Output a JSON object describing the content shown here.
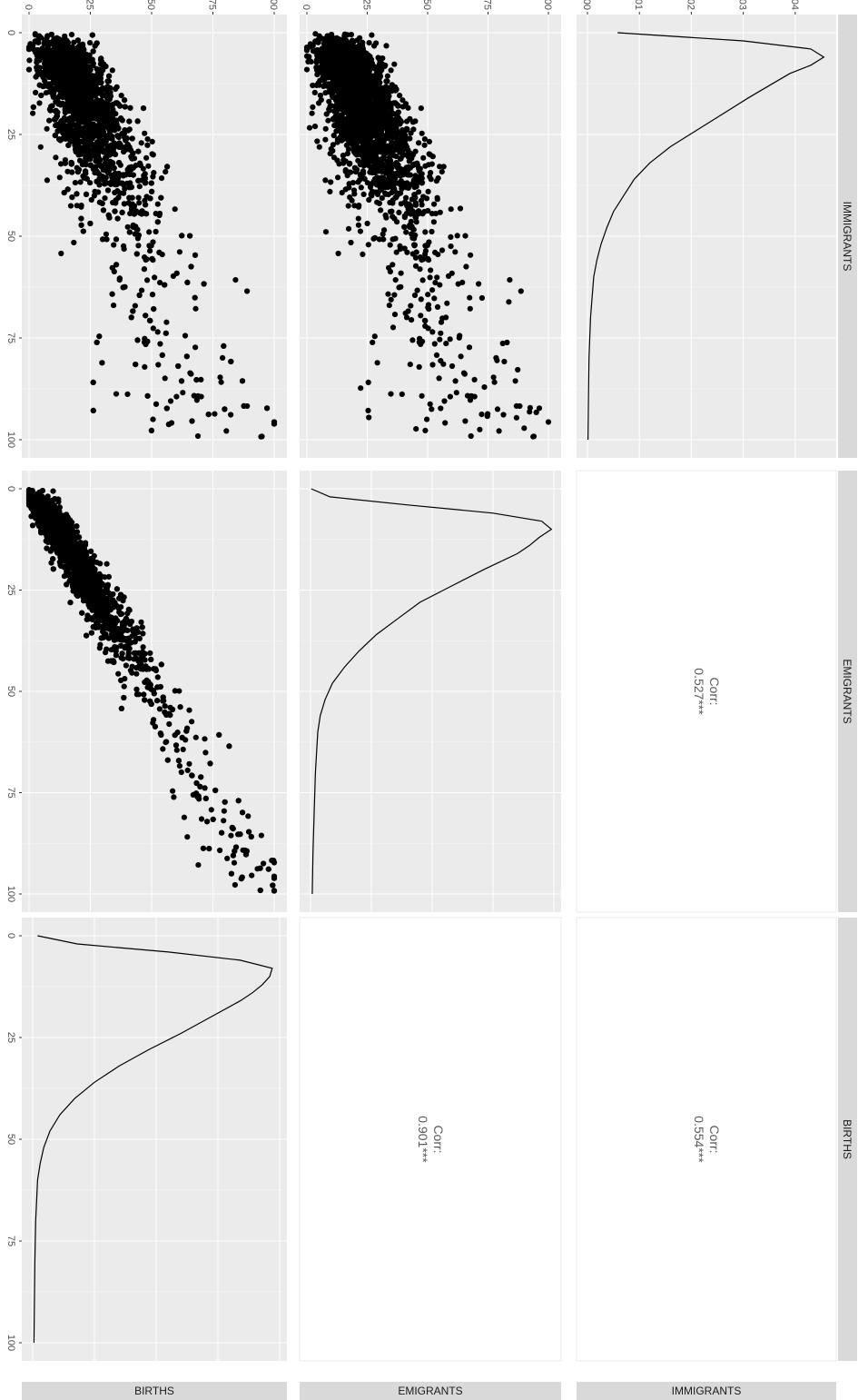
{
  "chart_data": {
    "type": "pairs-matrix",
    "variables": [
      "IMMIGRANTS",
      "EMIGRANTS",
      "BIRTHS"
    ],
    "x_ticks": [
      0,
      25,
      50,
      75,
      100
    ],
    "density_y_ticks": [
      "0.00",
      "0.01",
      "0.02",
      "0.03",
      "0.04"
    ],
    "scatter_y_ticks": [
      0,
      25,
      50,
      75,
      100
    ],
    "correlations": [
      {
        "pair": [
          "IMMIGRANTS",
          "EMIGRANTS"
        ],
        "label": "Corr:",
        "value": "0.527***"
      },
      {
        "pair": [
          "IMMIGRANTS",
          "BIRTHS"
        ],
        "label": "Corr:",
        "value": "0.554***"
      },
      {
        "pair": [
          "EMIGRANTS",
          "BIRTHS"
        ],
        "label": "Corr:",
        "value": "0.901***"
      }
    ],
    "densities": [
      {
        "variable": "IMMIGRANTS",
        "x": [
          0,
          2,
          4,
          6,
          8,
          10,
          13,
          16,
          20,
          24,
          28,
          32,
          36,
          40,
          44,
          48,
          52,
          56,
          60,
          70,
          80,
          90,
          100
        ],
        "y": [
          0.0058,
          0.03,
          0.043,
          0.0455,
          0.043,
          0.039,
          0.035,
          0.031,
          0.026,
          0.021,
          0.016,
          0.012,
          0.009,
          0.007,
          0.005,
          0.0037,
          0.0026,
          0.0018,
          0.0012,
          0.0006,
          0.0003,
          0.0002,
          0.0001
        ]
      },
      {
        "variable": "EMIGRANTS",
        "x": [
          0,
          2,
          4,
          6,
          8,
          10,
          12,
          14,
          16,
          20,
          24,
          28,
          32,
          36,
          40,
          44,
          48,
          52,
          56,
          60,
          70,
          80,
          90,
          100
        ],
        "y": [
          0.3,
          8,
          40,
          75,
          95,
          99,
          94,
          90,
          85,
          71,
          58,
          45,
          36,
          27,
          20,
          14,
          9,
          6,
          4,
          3,
          2,
          1.5,
          1,
          0.7
        ]
      },
      {
        "variable": "BIRTHS",
        "x": [
          0,
          2,
          4,
          6,
          8,
          10,
          12,
          14,
          16,
          20,
          24,
          28,
          32,
          36,
          40,
          44,
          48,
          52,
          56,
          60,
          70,
          80,
          90,
          100
        ],
        "y": [
          2,
          18,
          55,
          84,
          97,
          96,
          93,
          89,
          84,
          72,
          60,
          47,
          35,
          25,
          17,
          11,
          7,
          4.5,
          3,
          2,
          1.2,
          0.9,
          0.7,
          0.5
        ]
      }
    ],
    "scatters": [
      {
        "x_variable": "IMMIGRANTS",
        "y_variable": "EMIGRANTS",
        "slope": 0.6,
        "intercept": 12,
        "spread": 10
      },
      {
        "x_variable": "IMMIGRANTS",
        "y_variable": "BIRTHS",
        "slope": 0.62,
        "intercept": 11,
        "spread": 10
      },
      {
        "x_variable": "EMIGRANTS",
        "y_variable": "BIRTHS",
        "slope": 0.95,
        "intercept": 2,
        "spread": 5
      }
    ],
    "grid": true,
    "rotation": "90deg-clockwise"
  },
  "colors": {
    "panel_bg": "#ebebeb",
    "grid_major": "#ffffff",
    "strip_bg": "#d9d9d9",
    "ink": "#000000",
    "corr_text": "#595959",
    "tick_text": "#4d4d4d"
  }
}
